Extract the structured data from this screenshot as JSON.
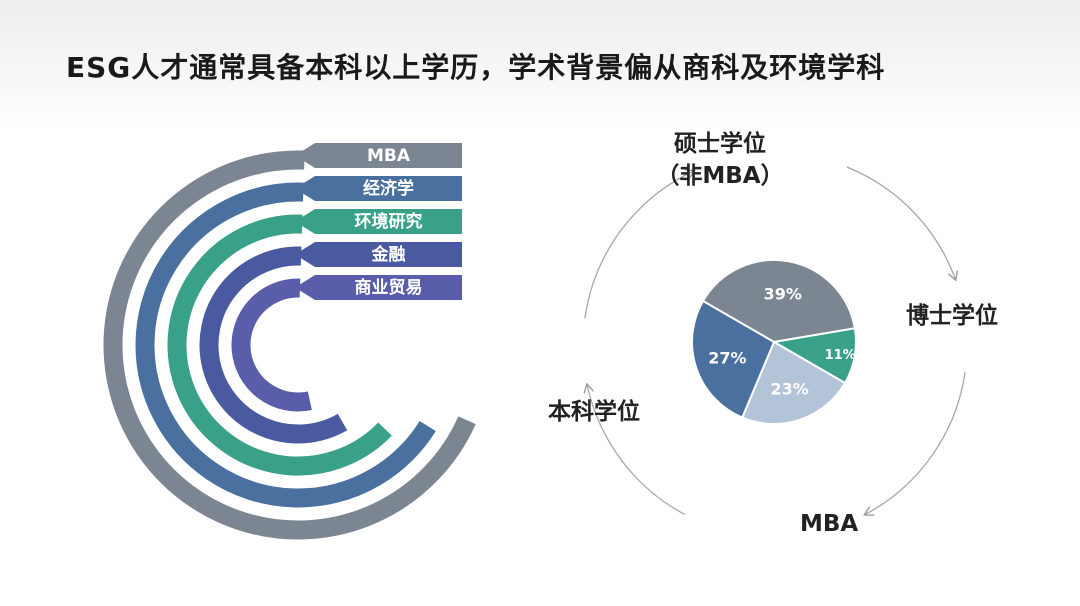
{
  "title": "ESG人才通常具备本科以上学历，学术背景偏从商科及环境学科",
  "chart_data": [
    {
      "type": "radial_bar",
      "title": "",
      "categories": [
        "MBA",
        "经济学",
        "环境研究",
        "金融",
        "商业贸易"
      ],
      "colors": [
        "#7c8592",
        "#4a70a0",
        "#3aa189",
        "#4a5aa0",
        "#5a5eaa"
      ]
    },
    {
      "type": "pie",
      "title": "",
      "slices": [
        {
          "value": 39,
          "label": "39%",
          "color": "#7c8592"
        },
        {
          "value": 11,
          "label": "11%",
          "color": "#3aa189"
        },
        {
          "value": 23,
          "label": "23%",
          "color": "#b4c4d8"
        },
        {
          "value": 27,
          "label": "27%",
          "color": "#4a70a0"
        }
      ],
      "cycle_labels": {
        "top_line1": "硕士学位",
        "top_line2": "（非MBA）",
        "right": "博士学位",
        "bottom": "MBA",
        "left": "本科学位"
      }
    }
  ]
}
